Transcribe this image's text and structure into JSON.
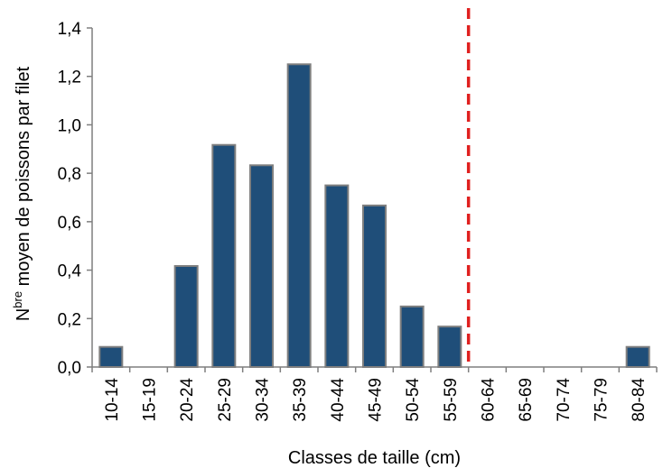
{
  "chart_data": {
    "type": "bar",
    "xlabel": "Classes de taille (cm)",
    "ylabel": {
      "prefix": "N",
      "superscript": "bre",
      "rest": " moyen de poissons par filet"
    },
    "categories": [
      "10-14",
      "15-19",
      "20-24",
      "25-29",
      "30-34",
      "35-39",
      "40-44",
      "45-49",
      "50-54",
      "55-59",
      "60-64",
      "65-69",
      "70-74",
      "75-79",
      "80-84"
    ],
    "values": [
      0.083,
      0,
      0.417,
      0.917,
      0.833,
      1.25,
      0.75,
      0.667,
      0.25,
      0.167,
      0,
      0,
      0,
      0,
      0.083
    ],
    "ylim": [
      0,
      1.4
    ],
    "yticks": [
      "0,0",
      "0,2",
      "0,4",
      "0,6",
      "0,8",
      "1,0",
      "1,2",
      "1,4"
    ],
    "grid": false,
    "bar_color": "#1f4e79",
    "bar_edge_color": "#7f7f7f",
    "threshold_line": {
      "between_categories": [
        "55-59",
        "60-64"
      ],
      "color": "#e0201f",
      "style": "dashed"
    }
  }
}
